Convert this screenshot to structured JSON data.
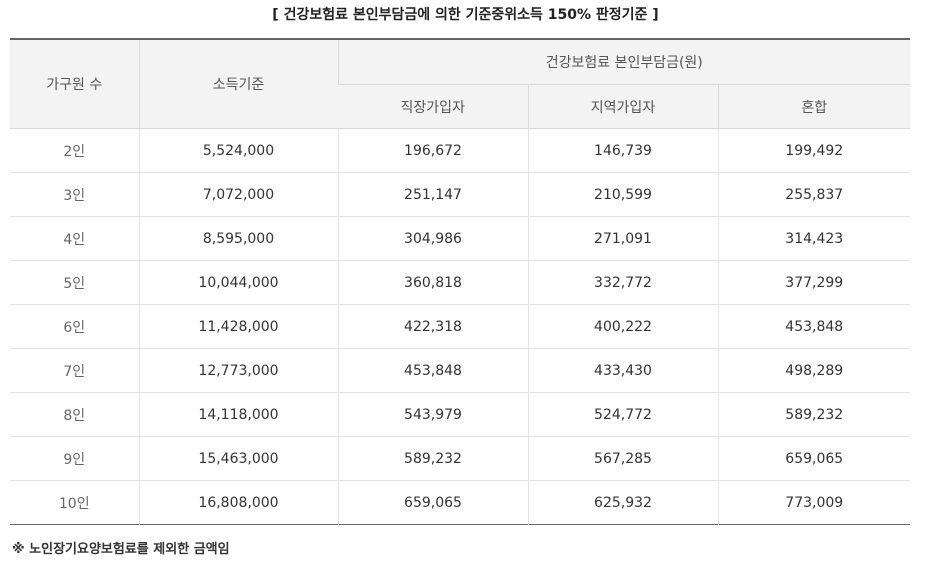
{
  "title": "[ 건강보험료 본인부담금에 의한 기준중위소득 150% 판정기준 ]",
  "table": {
    "headers": {
      "household": "가구원 수",
      "income": "소득기준",
      "premium_group": "건강보험료 본인부담금(원)",
      "employee": "직장가입자",
      "regional": "지역가입자",
      "mixed": "혼합"
    },
    "rows": [
      {
        "household": "2인",
        "income": "5,524,000",
        "employee": "196,672",
        "regional": "146,739",
        "mixed": "199,492"
      },
      {
        "household": "3인",
        "income": "7,072,000",
        "employee": "251,147",
        "regional": "210,599",
        "mixed": "255,837"
      },
      {
        "household": "4인",
        "income": "8,595,000",
        "employee": "304,986",
        "regional": "271,091",
        "mixed": "314,423"
      },
      {
        "household": "5인",
        "income": "10,044,000",
        "employee": "360,818",
        "regional": "332,772",
        "mixed": "377,299"
      },
      {
        "household": "6인",
        "income": "11,428,000",
        "employee": "422,318",
        "regional": "400,222",
        "mixed": "453,848"
      },
      {
        "household": "7인",
        "income": "12,773,000",
        "employee": "453,848",
        "regional": "433,430",
        "mixed": "498,289"
      },
      {
        "household": "8인",
        "income": "14,118,000",
        "employee": "543,979",
        "regional": "524,772",
        "mixed": "589,232"
      },
      {
        "household": "9인",
        "income": "15,463,000",
        "employee": "589,232",
        "regional": "567,285",
        "mixed": "659,065"
      },
      {
        "household": "10인",
        "income": "16,808,000",
        "employee": "659,065",
        "regional": "625,932",
        "mixed": "773,009"
      }
    ]
  },
  "note": "※ 노인장기요양보험료를 제외한 금액임"
}
